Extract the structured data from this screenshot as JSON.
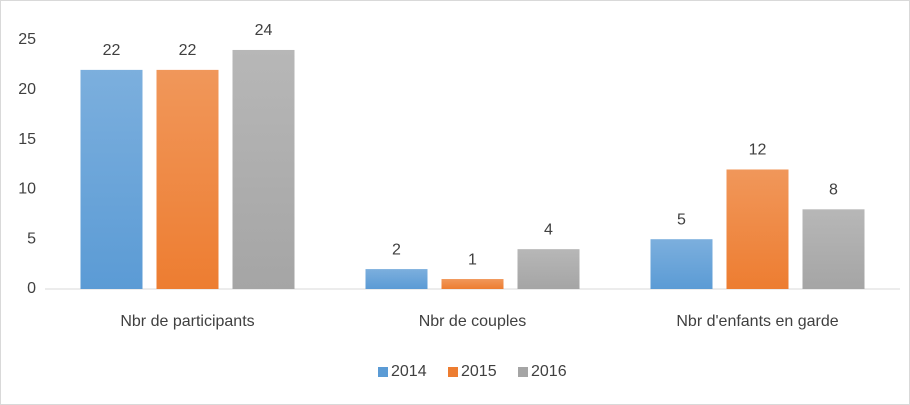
{
  "chart_data": {
    "type": "bar",
    "categories": [
      "Nbr de participants",
      "Nbr de couples",
      "Nbr d'enfants en garde"
    ],
    "series": [
      {
        "name": "2014",
        "color": "#5b9bd5",
        "values": [
          22,
          2,
          5
        ]
      },
      {
        "name": "2015",
        "color": "#ed7d31",
        "values": [
          22,
          1,
          12
        ]
      },
      {
        "name": "2016",
        "color": "#a5a5a5",
        "values": [
          24,
          4,
          8
        ]
      }
    ],
    "ylim": [
      0,
      25
    ],
    "yticks": [
      0,
      5,
      10,
      15,
      20,
      25
    ],
    "grid": false,
    "legend": "bottom"
  }
}
